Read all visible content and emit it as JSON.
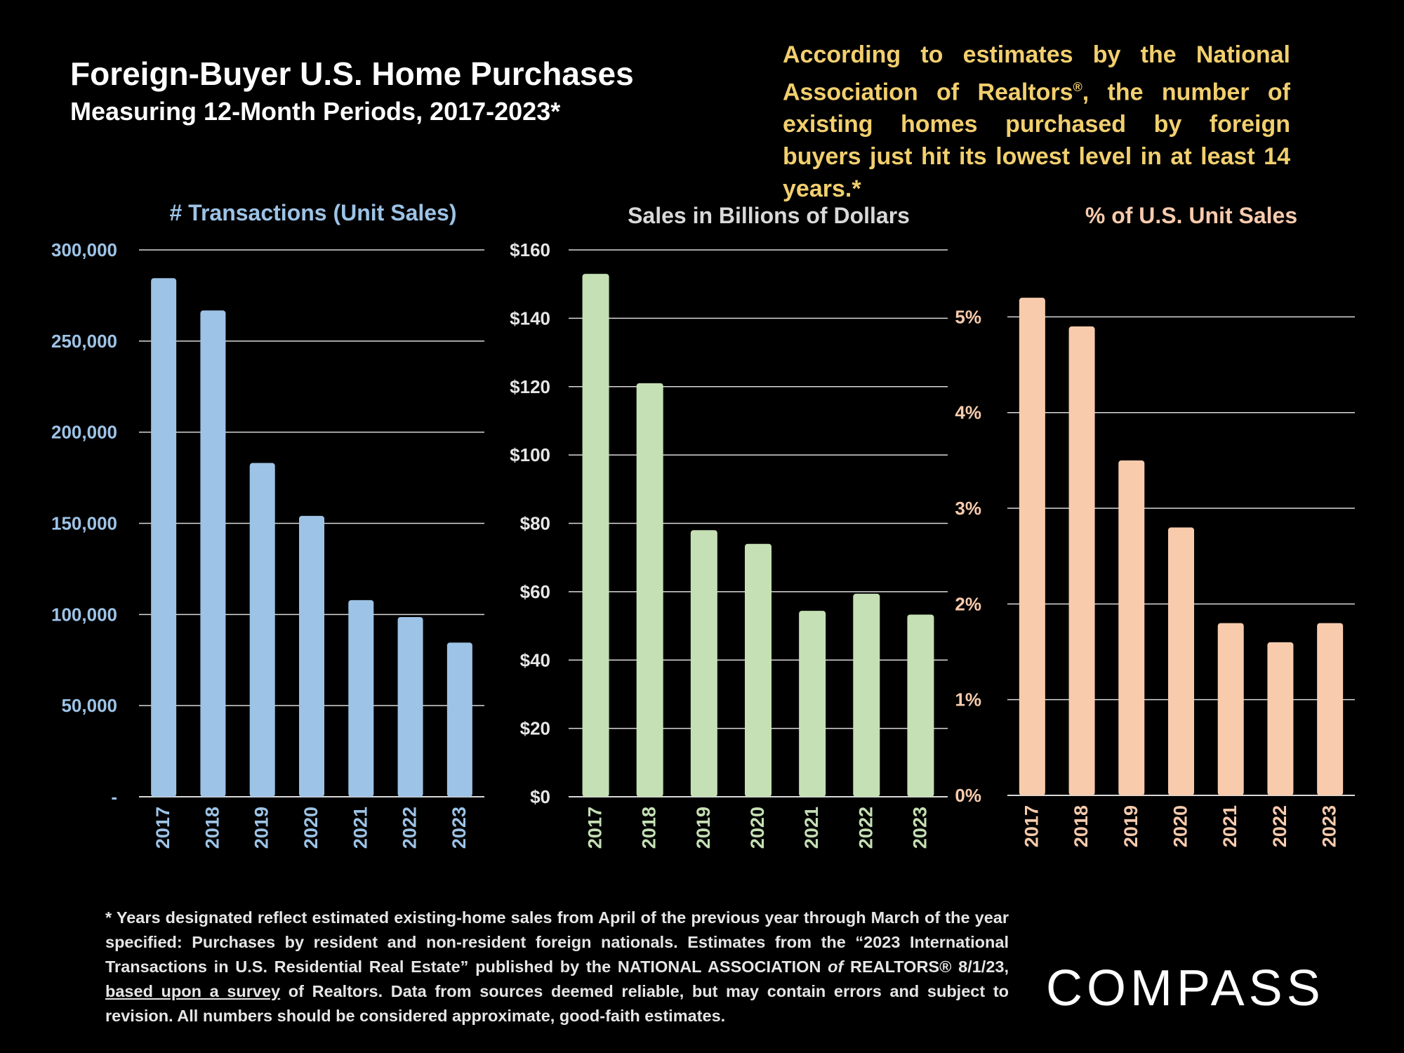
{
  "header": {
    "title": "Foreign-Buyer U.S. Home Purchases",
    "subtitle": "Measuring 12-Month Periods, 2017-2023*"
  },
  "callout": {
    "text_1": "According to estimates by the National Association of Realtors",
    "reg": "®",
    "text_2": ", the number of existing homes purchased by foreign buyers just hit its lowest level in at least 14 years.*"
  },
  "footnote": {
    "p1": "* Years designated reflect estimated existing-home sales from April of the previous year through March of the year specified: Purchases by resident and non-resident foreign nationals. Estimates from the “2023 International Transactions in U.S. Residential Real Estate” published by the NATIONAL ASSOCIATION ",
    "italic": "of",
    "p2": " REALTORS® 8/1/23, ",
    "underlined": "based upon a survey",
    "p3": " of Realtors. Data from sources deemed reliable, but may contain errors and subject to revision.  All numbers should be considered approximate, good-faith estimates."
  },
  "logo": {
    "text": "COMPASS"
  },
  "colors": {
    "background": "#000000",
    "title": "#ffffff",
    "callout": "#f2cf6e",
    "transactions_bar": "#9dc3e6",
    "transactions_title": "#9dc3e6",
    "dollars_bar": "#c5e0b4",
    "dollars_title": "#d9d9d9",
    "percent_bar": "#f8cbad",
    "percent_title": "#f8cbad"
  },
  "chart_data": [
    {
      "type": "bar",
      "title": "# Transactions (Unit Sales)",
      "categories": [
        "2017",
        "2018",
        "2019",
        "2020",
        "2021",
        "2022",
        "2023"
      ],
      "values": [
        284500,
        266800,
        183100,
        154100,
        107900,
        98600,
        84600
      ],
      "yticks": [
        0,
        50000,
        100000,
        150000,
        200000,
        250000,
        300000
      ],
      "ytick_labels": [
        "-",
        "50,000",
        "100,000",
        "150,000",
        "200,000",
        "250,000",
        "300,000"
      ],
      "ylim": [
        0,
        300000
      ],
      "grid": true
    },
    {
      "type": "bar",
      "title": "Sales in Billions of Dollars",
      "categories": [
        "2017",
        "2018",
        "2019",
        "2020",
        "2021",
        "2022",
        "2023"
      ],
      "values": [
        153.0,
        121.0,
        78.0,
        74.0,
        54.4,
        59.4,
        53.3
      ],
      "yticks": [
        0,
        20,
        40,
        60,
        80,
        100,
        120,
        140,
        160
      ],
      "ytick_labels": [
        "$0",
        "$20",
        "$40",
        "$60",
        "$80",
        "$100",
        "$120",
        "$140",
        "$160"
      ],
      "ylim": [
        0,
        160
      ],
      "grid": true
    },
    {
      "type": "bar",
      "title": "% of U.S. Unit Sales",
      "categories": [
        "2017",
        "2018",
        "2019",
        "2020",
        "2021",
        "2022",
        "2023"
      ],
      "values": [
        5.2,
        4.9,
        3.5,
        2.8,
        1.8,
        1.6,
        1.8
      ],
      "yticks": [
        0,
        1,
        2,
        3,
        4,
        5
      ],
      "ytick_labels": [
        "0%",
        "1%",
        "2%",
        "3%",
        "4%",
        "5%"
      ],
      "ylim": [
        0,
        5.7
      ],
      "grid": true
    }
  ]
}
